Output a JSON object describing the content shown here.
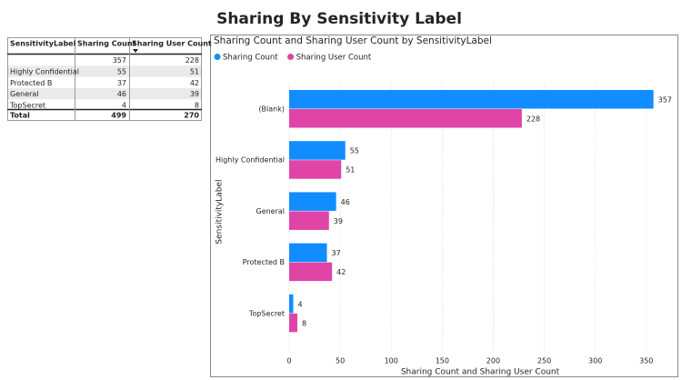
{
  "title": "Sharing By Sensitivity Label",
  "table": {
    "headers": [
      "SensitivityLabel",
      "Sharing Count",
      "Sharing User Count"
    ],
    "rows": [
      [
        null,
        357,
        228
      ],
      [
        "Highly Confidential",
        55,
        51
      ],
      [
        "Protected B",
        37,
        42
      ],
      [
        "General",
        46,
        39
      ],
      [
        "TopSecret",
        4,
        8
      ]
    ],
    "total": [
      "Total",
      499,
      270
    ]
  },
  "chart_data": {
    "type": "hbar",
    "title": "Sharing Count and Sharing User Count by SensitivityLabel",
    "categories": [
      "(Blank)",
      "Highly Confidential",
      "General",
      "Protected B",
      "TopSecret"
    ],
    "series": [
      {
        "name": "Sharing Count",
        "color": "#118dff",
        "values": [
          357,
          55,
          46,
          37,
          4
        ]
      },
      {
        "name": "Sharing User Count",
        "color": "#e044a7",
        "values": [
          228,
          51,
          39,
          42,
          8
        ]
      }
    ],
    "xlim": [
      0,
      360
    ],
    "xticks": [
      0,
      50,
      100,
      150,
      200,
      250,
      300,
      350
    ],
    "x_label": "Sharing Count and Sharing User Count",
    "y_label": "SensitivityLabel",
    "grid": true
  }
}
